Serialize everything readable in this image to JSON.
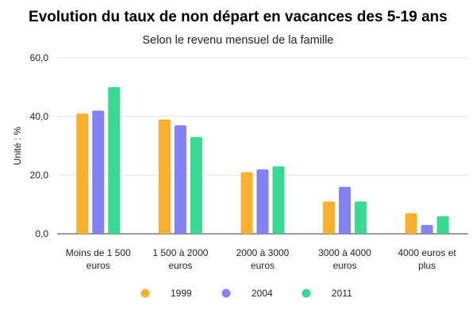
{
  "chart_data": {
    "type": "bar",
    "title": "Evolution du taux de non départ en vacances des 5-19 ans",
    "subtitle": "Selon le revenu mensuel de la famille",
    "xlabel": "",
    "ylabel": "Unité : %",
    "ylim": [
      0,
      60
    ],
    "yticks": [
      0,
      20,
      40,
      60
    ],
    "ytick_labels": [
      "0,0",
      "20,0",
      "40,0",
      "60,0"
    ],
    "grid": true,
    "legend_position": "bottom",
    "categories": [
      [
        "Moins de 1 500",
        "euros"
      ],
      [
        "1 500 à 2000",
        "euros"
      ],
      [
        "2000 à 3000",
        "euros"
      ],
      [
        "3000 à 4000",
        "euros"
      ],
      [
        "4000 euros et",
        "plus"
      ]
    ],
    "series": [
      {
        "name": "1999",
        "color": "#FBB02D",
        "values": [
          41,
          39,
          21,
          11,
          7
        ]
      },
      {
        "name": "2004",
        "color": "#8282F5",
        "values": [
          42,
          37,
          22,
          16,
          3
        ]
      },
      {
        "name": "2011",
        "color": "#38D990",
        "values": [
          50,
          33,
          23,
          11,
          6
        ]
      }
    ]
  }
}
